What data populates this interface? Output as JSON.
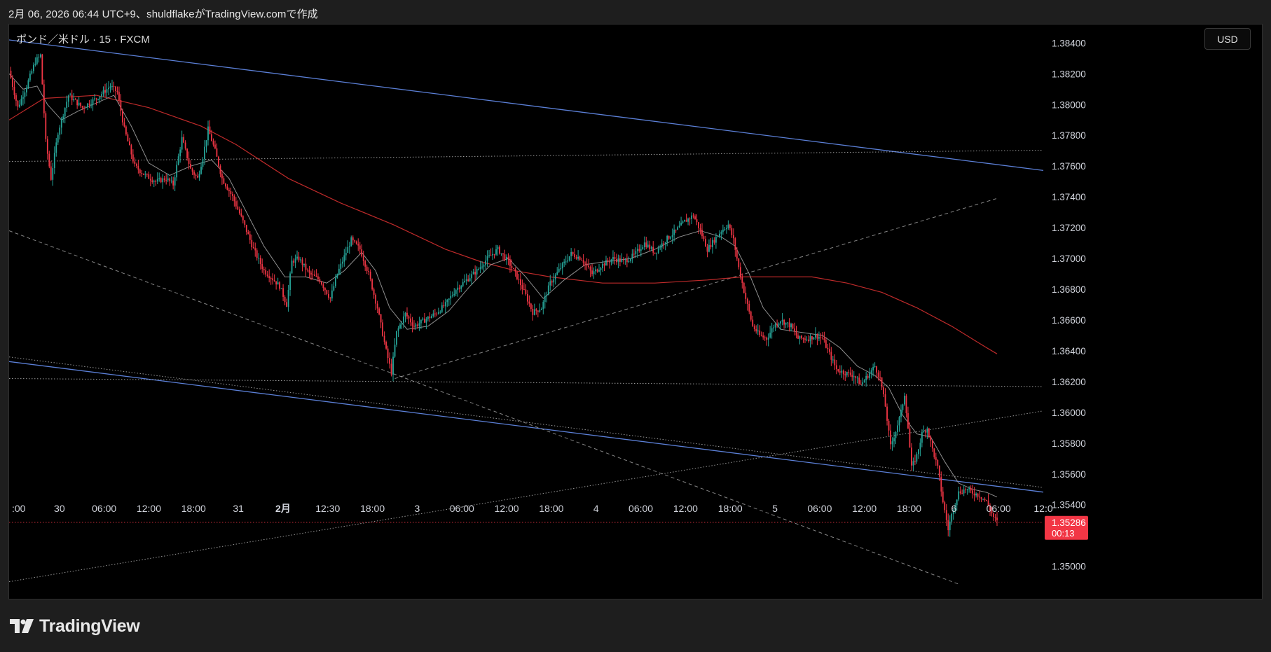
{
  "caption": "2月 06, 2026 06:44 UTC+9、shuldflakeがTradingView.comで作成",
  "symbol": "ポンド／米ドル · 15 · FXCM",
  "currency_button": "USD",
  "brand": "TradingView",
  "price_badge": {
    "price": "1.35286",
    "countdown": "00:13",
    "color": "#f23645"
  },
  "colors": {
    "up": "#26a69a",
    "down": "#f23645",
    "ma_slow": "#d32f2f",
    "ma_fast": "#9e9e9e",
    "channel": "#5b7fd6",
    "guide": "#bdbdbd"
  },
  "chart_data": {
    "type": "candlestick",
    "ylim": [
      1.3488,
      1.3852
    ],
    "y_ticks": [
      "1.38400",
      "1.38200",
      "1.38000",
      "1.37800",
      "1.37600",
      "1.37400",
      "1.37200",
      "1.37000",
      "1.36800",
      "1.36600",
      "1.36400",
      "1.36200",
      "1.36000",
      "1.35800",
      "1.35600",
      "1.35400",
      "1.35000"
    ],
    "x_ticks": [
      ":00",
      "30",
      "06:00",
      "12:00",
      "18:00",
      "31",
      "2月",
      "12:30",
      "18:00",
      "3",
      "06:00",
      "12:00",
      "18:00",
      "4",
      "06:00",
      "12:00",
      "18:00",
      "5",
      "06:00",
      "12:00",
      "18:00",
      "6",
      "06:00",
      "12:0"
    ],
    "x_ticks_bold": [
      6
    ],
    "price_path": [
      [
        0,
        1.3822
      ],
      [
        5,
        1.3798
      ],
      [
        10,
        1.3812
      ],
      [
        15,
        1.3828
      ],
      [
        18,
        1.3832
      ],
      [
        21,
        1.3776
      ],
      [
        24,
        1.3752
      ],
      [
        28,
        1.3782
      ],
      [
        34,
        1.3806
      ],
      [
        42,
        1.3798
      ],
      [
        50,
        1.3804
      ],
      [
        58,
        1.3812
      ],
      [
        62,
        1.3808
      ],
      [
        66,
        1.3784
      ],
      [
        72,
        1.376
      ],
      [
        78,
        1.3754
      ],
      [
        84,
        1.375
      ],
      [
        90,
        1.3752
      ],
      [
        94,
        1.3748
      ],
      [
        99,
        1.3778
      ],
      [
        104,
        1.3758
      ],
      [
        108,
        1.3752
      ],
      [
        111,
        1.3766
      ],
      [
        114,
        1.3784
      ],
      [
        118,
        1.377
      ],
      [
        122,
        1.3752
      ],
      [
        128,
        1.374
      ],
      [
        134,
        1.3724
      ],
      [
        140,
        1.3706
      ],
      [
        146,
        1.3692
      ],
      [
        150,
        1.3688
      ],
      [
        155,
        1.3682
      ],
      [
        159,
        1.367
      ],
      [
        162,
        1.3698
      ],
      [
        166,
        1.37
      ],
      [
        172,
        1.369
      ],
      [
        178,
        1.3686
      ],
      [
        184,
        1.3674
      ],
      [
        188,
        1.369
      ],
      [
        193,
        1.3704
      ],
      [
        196,
        1.3712
      ],
      [
        201,
        1.3706
      ],
      [
        206,
        1.369
      ],
      [
        211,
        1.3668
      ],
      [
        216,
        1.364
      ],
      [
        219,
        1.3626
      ],
      [
        222,
        1.3652
      ],
      [
        227,
        1.3664
      ],
      [
        232,
        1.3656
      ],
      [
        238,
        1.366
      ],
      [
        244,
        1.3664
      ],
      [
        250,
        1.367
      ],
      [
        256,
        1.368
      ],
      [
        262,
        1.3686
      ],
      [
        268,
        1.3692
      ],
      [
        274,
        1.37
      ],
      [
        280,
        1.3706
      ],
      [
        286,
        1.3698
      ],
      [
        291,
        1.3688
      ],
      [
        296,
        1.3676
      ],
      [
        300,
        1.3665
      ],
      [
        305,
        1.3668
      ],
      [
        310,
        1.3684
      ],
      [
        316,
        1.3694
      ],
      [
        322,
        1.3703
      ],
      [
        328,
        1.37
      ],
      [
        334,
        1.369
      ],
      [
        340,
        1.3696
      ],
      [
        346,
        1.37
      ],
      [
        352,
        1.3698
      ],
      [
        358,
        1.3702
      ],
      [
        364,
        1.371
      ],
      [
        370,
        1.3704
      ],
      [
        376,
        1.3712
      ],
      [
        382,
        1.3718
      ],
      [
        387,
        1.3724
      ],
      [
        392,
        1.3728
      ],
      [
        396,
        1.3718
      ],
      [
        400,
        1.3706
      ],
      [
        404,
        1.3712
      ],
      [
        408,
        1.3718
      ],
      [
        412,
        1.3722
      ],
      [
        415,
        1.3712
      ],
      [
        418,
        1.3694
      ],
      [
        422,
        1.3674
      ],
      [
        426,
        1.3656
      ],
      [
        430,
        1.365
      ],
      [
        434,
        1.3648
      ],
      [
        438,
        1.3656
      ],
      [
        442,
        1.366
      ],
      [
        448,
        1.3656
      ],
      [
        452,
        1.3648
      ],
      [
        458,
        1.3648
      ],
      [
        462,
        1.365
      ],
      [
        466,
        1.3648
      ],
      [
        470,
        1.3638
      ],
      [
        474,
        1.3628
      ],
      [
        478,
        1.3626
      ],
      [
        484,
        1.3624
      ],
      [
        488,
        1.3618
      ],
      [
        492,
        1.3624
      ],
      [
        496,
        1.363
      ],
      [
        499,
        1.3622
      ],
      [
        502,
        1.3604
      ],
      [
        505,
        1.3578
      ],
      [
        508,
        1.3588
      ],
      [
        511,
        1.36
      ],
      [
        513,
        1.3612
      ],
      [
        515,
        1.359
      ],
      [
        517,
        1.3564
      ],
      [
        520,
        1.3572
      ],
      [
        523,
        1.3586
      ],
      [
        526,
        1.359
      ],
      [
        529,
        1.3576
      ],
      [
        532,
        1.3564
      ],
      [
        535,
        1.3542
      ],
      [
        538,
        1.3524
      ],
      [
        541,
        1.3538
      ],
      [
        544,
        1.3548
      ],
      [
        548,
        1.355
      ],
      [
        552,
        1.3548
      ],
      [
        556,
        1.3546
      ],
      [
        560,
        1.3542
      ],
      [
        564,
        1.3532
      ],
      [
        566,
        1.3529
      ]
    ],
    "ma_fast_path": [
      [
        0,
        1.382
      ],
      [
        8,
        1.381
      ],
      [
        16,
        1.3812
      ],
      [
        22,
        1.38
      ],
      [
        30,
        1.379
      ],
      [
        40,
        1.3796
      ],
      [
        52,
        1.3802
      ],
      [
        60,
        1.3806
      ],
      [
        70,
        1.3786
      ],
      [
        80,
        1.3762
      ],
      [
        92,
        1.3754
      ],
      [
        104,
        1.376
      ],
      [
        116,
        1.3764
      ],
      [
        126,
        1.3752
      ],
      [
        136,
        1.373
      ],
      [
        146,
        1.3708
      ],
      [
        158,
        1.3688
      ],
      [
        170,
        1.3688
      ],
      [
        182,
        1.3684
      ],
      [
        192,
        1.3692
      ],
      [
        202,
        1.3704
      ],
      [
        210,
        1.3692
      ],
      [
        218,
        1.3668
      ],
      [
        228,
        1.3654
      ],
      [
        240,
        1.3656
      ],
      [
        252,
        1.3666
      ],
      [
        264,
        1.3682
      ],
      [
        276,
        1.3696
      ],
      [
        286,
        1.37
      ],
      [
        296,
        1.3688
      ],
      [
        306,
        1.3674
      ],
      [
        318,
        1.3686
      ],
      [
        330,
        1.3696
      ],
      [
        342,
        1.3698
      ],
      [
        356,
        1.37
      ],
      [
        370,
        1.3706
      ],
      [
        384,
        1.3714
      ],
      [
        396,
        1.3718
      ],
      [
        408,
        1.3714
      ],
      [
        416,
        1.3708
      ],
      [
        424,
        1.369
      ],
      [
        432,
        1.3668
      ],
      [
        442,
        1.3654
      ],
      [
        454,
        1.3652
      ],
      [
        466,
        1.365
      ],
      [
        476,
        1.3642
      ],
      [
        486,
        1.363
      ],
      [
        496,
        1.3624
      ],
      [
        504,
        1.3616
      ],
      [
        512,
        1.3598
      ],
      [
        520,
        1.3586
      ],
      [
        528,
        1.3584
      ],
      [
        536,
        1.3568
      ],
      [
        544,
        1.3554
      ],
      [
        552,
        1.355
      ],
      [
        560,
        1.3548
      ],
      [
        566,
        1.3545
      ]
    ],
    "ma_slow_path": [
      [
        0,
        1.379
      ],
      [
        20,
        1.3804
      ],
      [
        50,
        1.3806
      ],
      [
        80,
        1.3798
      ],
      [
        110,
        1.3786
      ],
      [
        130,
        1.3774
      ],
      [
        160,
        1.3752
      ],
      [
        190,
        1.3736
      ],
      [
        220,
        1.3722
      ],
      [
        250,
        1.3706
      ],
      [
        270,
        1.3698
      ],
      [
        290,
        1.3692
      ],
      [
        310,
        1.3688
      ],
      [
        340,
        1.3684
      ],
      [
        370,
        1.3684
      ],
      [
        400,
        1.3686
      ],
      [
        420,
        1.3688
      ],
      [
        440,
        1.3688
      ],
      [
        460,
        1.3688
      ],
      [
        480,
        1.3684
      ],
      [
        500,
        1.3678
      ],
      [
        520,
        1.3668
      ],
      [
        540,
        1.3656
      ],
      [
        560,
        1.3642
      ],
      [
        566,
        1.3638
      ]
    ],
    "trendlines": [
      {
        "style": "channel",
        "from": [
          0,
          1.3842
        ],
        "to": [
          566,
          1.3761
        ]
      },
      {
        "style": "channel",
        "from": [
          0,
          1.3633
        ],
        "to": [
          566,
          1.3552
        ]
      },
      {
        "style": "dotted",
        "from": [
          0,
          1.3636
        ],
        "to": [
          566,
          1.3555
        ]
      },
      {
        "style": "dotted",
        "from": [
          0,
          1.3763
        ],
        "to": [
          566,
          1.377
        ]
      },
      {
        "style": "dotted",
        "from": [
          0,
          1.3622
        ],
        "to": [
          566,
          1.3617
        ]
      },
      {
        "style": "dotted",
        "from": [
          0,
          1.349
        ],
        "to": [
          566,
          1.3596
        ]
      },
      {
        "style": "dashed",
        "from": [
          0,
          1.3718
        ],
        "to": [
          545,
          1.3488
        ]
      },
      {
        "style": "dashed",
        "from": [
          221,
          1.3622
        ],
        "to": [
          566,
          1.3739
        ]
      },
      {
        "style": "last_price",
        "from": [
          0,
          1.35286
        ],
        "to": [
          566,
          1.35286
        ]
      }
    ]
  }
}
